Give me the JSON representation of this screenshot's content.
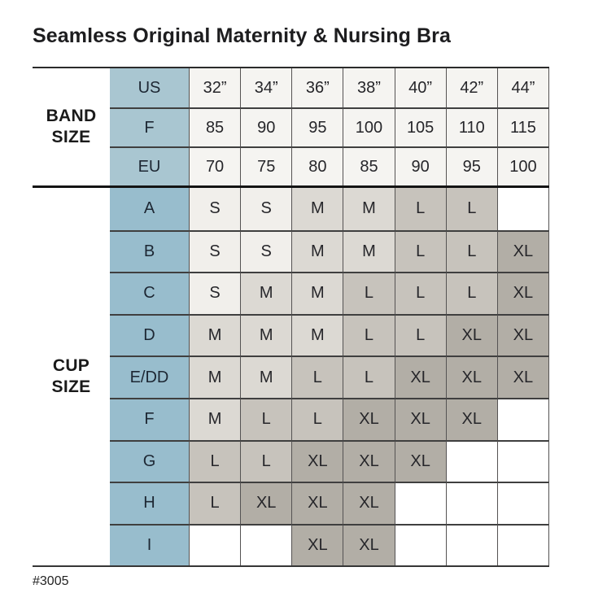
{
  "title": "Seamless Original Maternity & Nursing Bra",
  "footer": {
    "style_number": "#3005"
  },
  "band_section": {
    "label": "BAND SIZE",
    "rows": [
      {
        "header": "US",
        "values": [
          "32”",
          "34”",
          "36”",
          "38”",
          "40”",
          "42”",
          "44”"
        ]
      },
      {
        "header": "F",
        "values": [
          "85",
          "90",
          "95",
          "100",
          "105",
          "110",
          "115"
        ]
      },
      {
        "header": "EU",
        "values": [
          "70",
          "75",
          "80",
          "85",
          "90",
          "95",
          "100"
        ]
      }
    ]
  },
  "cup_section": {
    "label": "CUP SIZE",
    "rows": [
      {
        "header": "A",
        "values": [
          "S",
          "S",
          "M",
          "M",
          "L",
          "L",
          ""
        ]
      },
      {
        "header": "B",
        "values": [
          "S",
          "S",
          "M",
          "M",
          "L",
          "L",
          "XL"
        ]
      },
      {
        "header": "C",
        "values": [
          "S",
          "M",
          "M",
          "L",
          "L",
          "L",
          "XL"
        ]
      },
      {
        "header": "D",
        "values": [
          "M",
          "M",
          "M",
          "L",
          "L",
          "XL",
          "XL"
        ]
      },
      {
        "header": "E/DD",
        "values": [
          "M",
          "M",
          "L",
          "L",
          "XL",
          "XL",
          "XL"
        ]
      },
      {
        "header": "F",
        "values": [
          "M",
          "L",
          "L",
          "XL",
          "XL",
          "XL",
          ""
        ]
      },
      {
        "header": "G",
        "values": [
          "L",
          "L",
          "XL",
          "XL",
          "XL",
          "",
          ""
        ]
      },
      {
        "header": "H",
        "values": [
          "L",
          "XL",
          "XL",
          "XL",
          "",
          "",
          ""
        ]
      },
      {
        "header": "I",
        "values": [
          "",
          "",
          "XL",
          "XL",
          "",
          "",
          ""
        ]
      }
    ]
  },
  "colors": {
    "band_header_bg": "#a9c6d1",
    "cup_header_bg": "#98bdcd",
    "band_value_bg": "#f5f4f1",
    "size_s": "#f1efeb",
    "size_m": "#dcd9d3",
    "size_l": "#c7c3bc",
    "size_xl": "#b2aea6",
    "empty_cell_bg": "#ffffff"
  },
  "chart_data": {
    "type": "table",
    "title": "Seamless Original Maternity & Nursing Bra",
    "columns": [
      "32”",
      "34”",
      "36”",
      "38”",
      "40”",
      "42”",
      "44”"
    ],
    "rows": [
      {
        "section": "BAND SIZE",
        "label": "US",
        "values": [
          "32”",
          "34”",
          "36”",
          "38”",
          "40”",
          "42”",
          "44”"
        ]
      },
      {
        "section": "BAND SIZE",
        "label": "F",
        "values": [
          85,
          90,
          95,
          100,
          105,
          110,
          115
        ]
      },
      {
        "section": "BAND SIZE",
        "label": "EU",
        "values": [
          70,
          75,
          80,
          85,
          90,
          95,
          100
        ]
      },
      {
        "section": "CUP SIZE",
        "label": "A",
        "values": [
          "S",
          "S",
          "M",
          "M",
          "L",
          "L",
          null
        ]
      },
      {
        "section": "CUP SIZE",
        "label": "B",
        "values": [
          "S",
          "S",
          "M",
          "M",
          "L",
          "L",
          "XL"
        ]
      },
      {
        "section": "CUP SIZE",
        "label": "C",
        "values": [
          "S",
          "M",
          "M",
          "L",
          "L",
          "L",
          "XL"
        ]
      },
      {
        "section": "CUP SIZE",
        "label": "D",
        "values": [
          "M",
          "M",
          "M",
          "L",
          "L",
          "XL",
          "XL"
        ]
      },
      {
        "section": "CUP SIZE",
        "label": "E/DD",
        "values": [
          "M",
          "M",
          "L",
          "L",
          "XL",
          "XL",
          "XL"
        ]
      },
      {
        "section": "CUP SIZE",
        "label": "F",
        "values": [
          "M",
          "L",
          "L",
          "XL",
          "XL",
          "XL",
          null
        ]
      },
      {
        "section": "CUP SIZE",
        "label": "G",
        "values": [
          "L",
          "L",
          "XL",
          "XL",
          "XL",
          null,
          null
        ]
      },
      {
        "section": "CUP SIZE",
        "label": "H",
        "values": [
          "L",
          "XL",
          "XL",
          "XL",
          null,
          null,
          null
        ]
      },
      {
        "section": "CUP SIZE",
        "label": "I",
        "values": [
          null,
          null,
          "XL",
          "XL",
          null,
          null,
          null
        ]
      }
    ],
    "legend_note": "cell shading encodes garment size: S lightest to XL darkest",
    "footnote": "#3005"
  }
}
